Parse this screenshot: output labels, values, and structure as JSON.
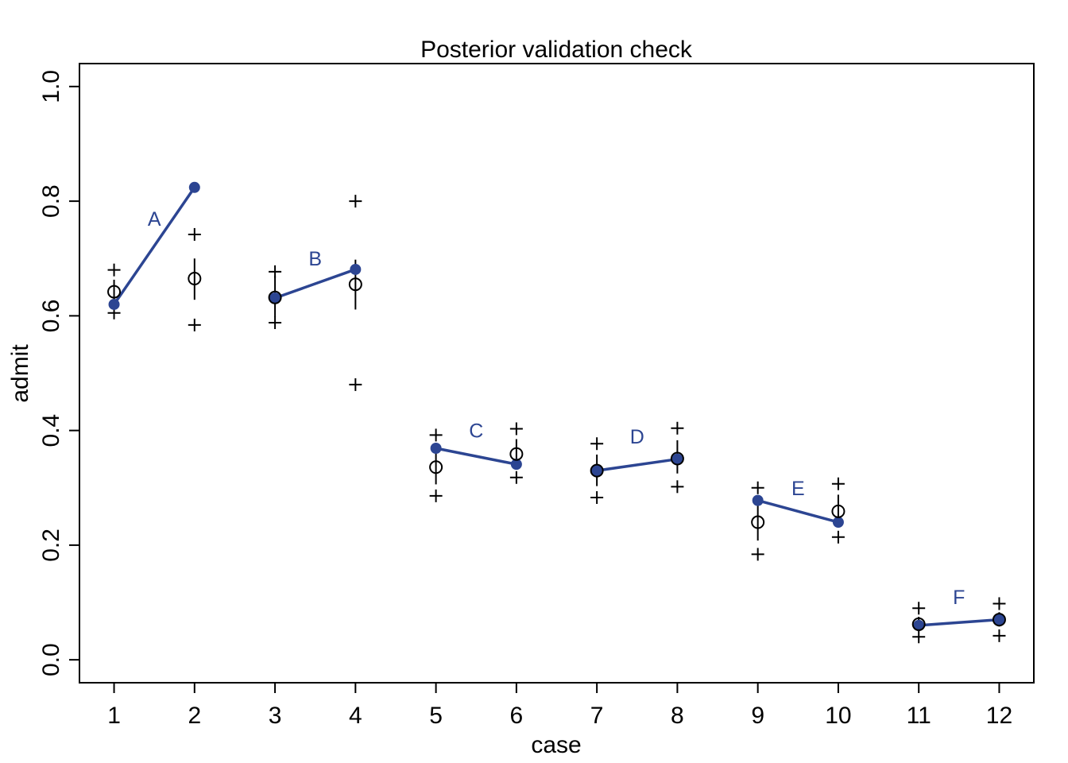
{
  "chart_data": {
    "type": "scatter",
    "title": "Posterior validation check",
    "xlabel": "case",
    "ylabel": "admit",
    "xlim": [
      0.57,
      12.43
    ],
    "ylim": [
      -0.04,
      1.04
    ],
    "x_ticks": [
      "1",
      "2",
      "3",
      "4",
      "5",
      "6",
      "7",
      "8",
      "9",
      "10",
      "11",
      "12"
    ],
    "y_ticks": [
      "0.0",
      "0.2",
      "0.4",
      "0.6",
      "0.8",
      "1.0"
    ],
    "grid": false,
    "series_color": "#2c4592",
    "observed": {
      "x": [
        1,
        2,
        3,
        4,
        5,
        6,
        7,
        8,
        9,
        10,
        11,
        12
      ],
      "y": [
        0.62,
        0.824,
        0.631,
        0.681,
        0.369,
        0.341,
        0.33,
        0.35,
        0.278,
        0.24,
        0.06,
        0.07
      ]
    },
    "department_labels": [
      {
        "text": "A",
        "x": 1.5,
        "y": 0.77
      },
      {
        "text": "B",
        "x": 3.5,
        "y": 0.7
      },
      {
        "text": "C",
        "x": 5.5,
        "y": 0.4
      },
      {
        "text": "D",
        "x": 7.5,
        "y": 0.39
      },
      {
        "text": "E",
        "x": 9.5,
        "y": 0.3
      },
      {
        "text": "F",
        "x": 11.5,
        "y": 0.11
      }
    ],
    "posterior_mean": [
      0.642,
      0.665,
      0.632,
      0.655,
      0.336,
      0.359,
      0.33,
      0.351,
      0.24,
      0.259,
      0.062,
      0.07
    ],
    "interval_low": [
      0.62,
      0.628,
      0.598,
      0.611,
      0.306,
      0.333,
      0.303,
      0.325,
      0.208,
      0.236,
      0.05,
      0.058
    ],
    "interval_high": [
      0.663,
      0.7,
      0.67,
      0.698,
      0.365,
      0.385,
      0.358,
      0.383,
      0.27,
      0.288,
      0.075,
      0.083
    ],
    "predictive_low": [
      0.605,
      0.584,
      0.588,
      0.48,
      0.286,
      0.318,
      0.283,
      0.302,
      0.184,
      0.214,
      0.04,
      0.042
    ],
    "predictive_high": [
      0.68,
      0.742,
      0.677,
      0.8,
      0.392,
      0.403,
      0.377,
      0.404,
      0.3,
      0.307,
      0.09,
      0.098
    ]
  }
}
